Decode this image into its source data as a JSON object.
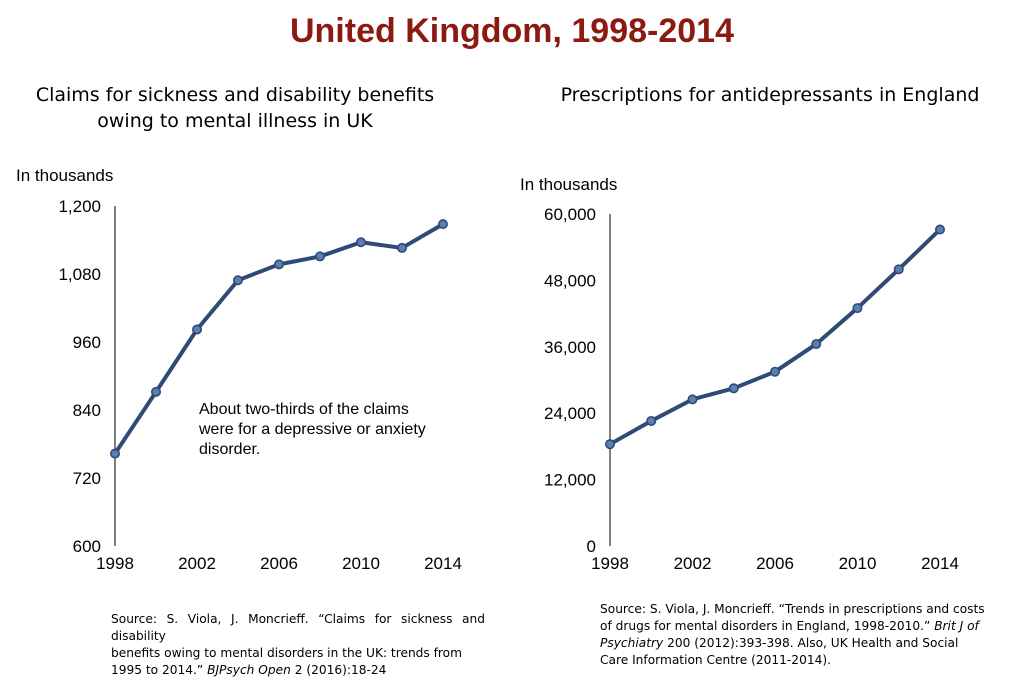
{
  "page": {
    "title": "United Kingdom, 1998-2014",
    "title_color": "#8B1A10",
    "line_color": "#2E4A75",
    "marker_fill": "#5B7FB5"
  },
  "chart_data": [
    {
      "type": "line",
      "title_line1": "Claims for sickness and disability benefits",
      "title_line2": "owing to mental illness in UK",
      "unit_label": "In thousands",
      "xlabel": "",
      "ylabel": "",
      "x": [
        1998,
        2000,
        2002,
        2004,
        2006,
        2008,
        2010,
        2012,
        2014
      ],
      "values": [
        763,
        872,
        982,
        1069,
        1097,
        1111,
        1136,
        1126,
        1168
      ],
      "ylim": [
        600,
        1200
      ],
      "yticks": [
        600,
        720,
        840,
        960,
        1080,
        1200
      ],
      "ytick_labels": [
        "600",
        "720",
        "840",
        "960",
        "1,080",
        "1,200"
      ],
      "xticks": [
        1998,
        2002,
        2006,
        2010,
        2014
      ],
      "xtick_labels": [
        "1998",
        "2002",
        "2006",
        "2010",
        "2014"
      ],
      "annotation_line1": "About two-thirds of the claims",
      "annotation_line2": "were for a depressive or anxiety",
      "annotation_line3": "disorder.",
      "source": {
        "line1": "Source: S. Viola, J. Moncrieff. “Claims for sickness and disability",
        "line2": "benefits owing to mental disorders in the UK: trends from",
        "line3_prefix": "1995 to 2014.”",
        "journal": "BJPsych Open",
        "line3_suffix": "2 (2016):18-24"
      }
    },
    {
      "type": "line",
      "title_line1": "Prescriptions for antidepressants in England",
      "unit_label": "In thousands",
      "xlabel": "",
      "ylabel": "",
      "x": [
        1998,
        2000,
        2002,
        2004,
        2006,
        2008,
        2010,
        2012,
        2014
      ],
      "values": [
        18400,
        22600,
        26500,
        28500,
        31500,
        36500,
        43000,
        50000,
        57200
      ],
      "ylim": [
        0,
        60000
      ],
      "yticks": [
        0,
        12000,
        24000,
        36000,
        48000,
        60000
      ],
      "ytick_labels": [
        "0",
        "12,000",
        "24,000",
        "36,000",
        "48,000",
        "60,000"
      ],
      "xticks": [
        1998,
        2002,
        2006,
        2010,
        2014
      ],
      "xtick_labels": [
        "1998",
        "2002",
        "2006",
        "2010",
        "2014"
      ],
      "source": {
        "line1": "Source: S. Viola, J. Moncrieff. “Trends in prescriptions and costs",
        "line2_prefix": "of drugs for mental disorders in England, 1998-2010.”",
        "journal1": "Brit J of",
        "journal2": "Psychiatry",
        "line3_suffix": "200 (2012):393-398. Also, UK Health and Social",
        "line4": "Care Information Centre (2011-2014)."
      }
    }
  ]
}
